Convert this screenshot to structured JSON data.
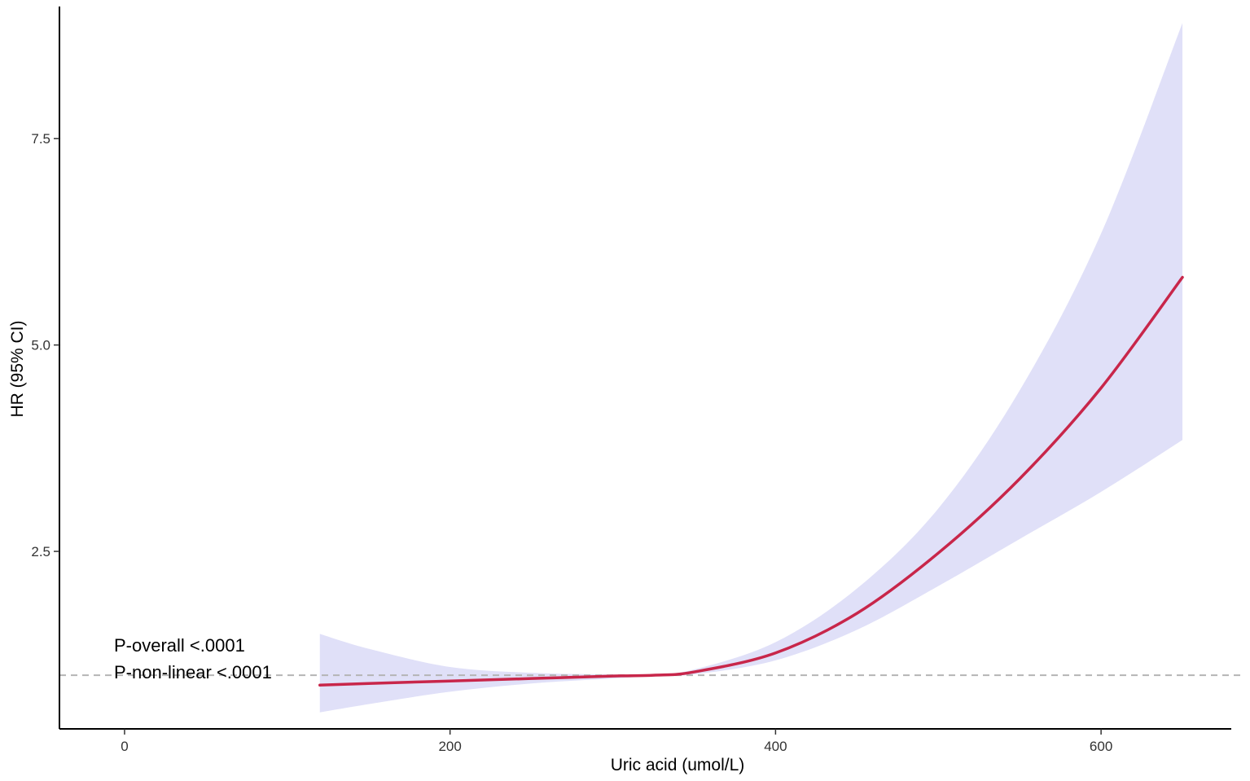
{
  "chart_data": {
    "type": "line",
    "title": "",
    "xlabel": "Uric acid (umol/L)",
    "ylabel": "HR (95% CI)",
    "xlim": [
      -40,
      680
    ],
    "ylim": [
      0.35,
      9.1
    ],
    "x_ticks": [
      0,
      200,
      400,
      600
    ],
    "x_tick_labels": [
      "0",
      "200",
      "400",
      "600"
    ],
    "y_ticks": [
      2.5,
      5.0,
      7.5
    ],
    "y_tick_labels": [
      "2.5",
      "5.0",
      "7.5"
    ],
    "grid": false,
    "legend": "none",
    "reference_line": {
      "y": 1.0,
      "style": "dashed",
      "color": "#b5b5b5"
    },
    "series": [
      {
        "type": "line",
        "color": "#c8264a",
        "x": [
          120,
          150,
          200,
          250,
          300,
          325,
          350,
          400,
          450,
          500,
          550,
          600,
          650
        ],
        "y": [
          0.88,
          0.9,
          0.93,
          0.96,
          0.99,
          1.0,
          1.04,
          1.27,
          1.75,
          2.48,
          3.38,
          4.48,
          5.82
        ]
      },
      {
        "type": "band",
        "color": "#e0e0f8",
        "x": [
          120,
          150,
          200,
          250,
          300,
          325,
          350,
          400,
          450,
          500,
          550,
          600,
          650
        ],
        "lower": [
          0.55,
          0.65,
          0.8,
          0.9,
          0.96,
          0.99,
          1.01,
          1.18,
          1.55,
          2.08,
          2.65,
          3.22,
          3.85
        ],
        "upper": [
          1.5,
          1.32,
          1.1,
          1.03,
          1.01,
          1.01,
          1.07,
          1.4,
          2.05,
          3.02,
          4.45,
          6.35,
          8.9
        ]
      }
    ],
    "annotations": [
      {
        "text": "P-overall <.0001"
      },
      {
        "text": "P-non-linear <.0001"
      }
    ]
  }
}
